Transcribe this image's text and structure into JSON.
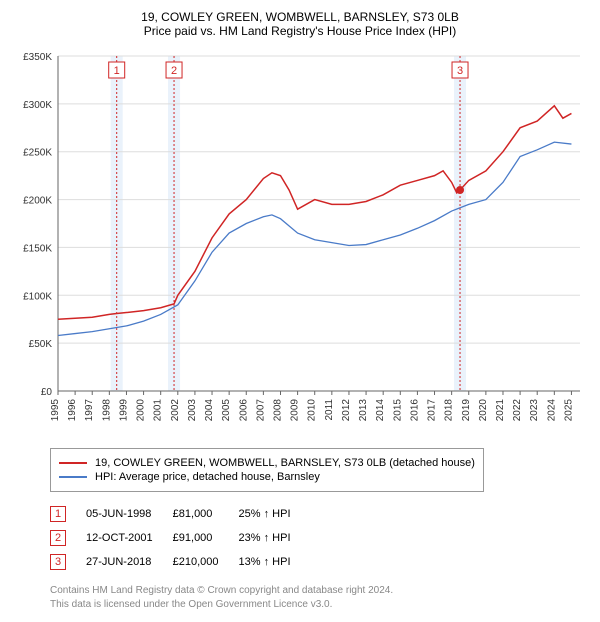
{
  "title": "19, COWLEY GREEN, WOMBWELL, BARNSLEY, S73 0LB",
  "subtitle": "Price paid vs. HM Land Registry's House Price Index (HPI)",
  "chart": {
    "type": "line",
    "background_color": "#ffffff",
    "grid_color": "#dddddd",
    "axis_color": "#666666",
    "title_fontsize": 12,
    "label_fontsize": 10,
    "xlim": [
      1995,
      2025.5
    ],
    "ylim": [
      0,
      350000
    ],
    "ytick_step": 50000,
    "ytick_labels": [
      "£0",
      "£50K",
      "£100K",
      "£150K",
      "£200K",
      "£250K",
      "£300K",
      "£350K"
    ],
    "xticks": [
      1995,
      1996,
      1997,
      1998,
      1999,
      2000,
      2001,
      2002,
      2003,
      2004,
      2005,
      2006,
      2007,
      2008,
      2009,
      2010,
      2011,
      2012,
      2013,
      2014,
      2015,
      2016,
      2017,
      2018,
      2019,
      2020,
      2021,
      2022,
      2023,
      2024,
      2025
    ],
    "marker_bands": [
      {
        "year": 1998.43,
        "label": "1"
      },
      {
        "year": 2001.78,
        "label": "2"
      },
      {
        "year": 2018.49,
        "label": "3"
      }
    ],
    "band_color": "#eaf2fb",
    "marker_dash_color": "#d02525",
    "marker_box_border": "#d02525",
    "marker_box_fill": "#ffffff",
    "series": [
      {
        "name": "property",
        "color": "#d02525",
        "line_width": 1.5,
        "data": [
          [
            1995,
            75000
          ],
          [
            1996,
            76000
          ],
          [
            1997,
            77000
          ],
          [
            1998,
            80000
          ],
          [
            1998.43,
            81000
          ],
          [
            1999,
            82000
          ],
          [
            2000,
            84000
          ],
          [
            2001,
            87000
          ],
          [
            2001.78,
            91000
          ],
          [
            2002,
            100000
          ],
          [
            2003,
            125000
          ],
          [
            2004,
            160000
          ],
          [
            2005,
            185000
          ],
          [
            2006,
            200000
          ],
          [
            2007,
            222000
          ],
          [
            2007.5,
            228000
          ],
          [
            2008,
            225000
          ],
          [
            2008.5,
            210000
          ],
          [
            2009,
            190000
          ],
          [
            2010,
            200000
          ],
          [
            2011,
            195000
          ],
          [
            2012,
            195000
          ],
          [
            2013,
            198000
          ],
          [
            2014,
            205000
          ],
          [
            2015,
            215000
          ],
          [
            2016,
            220000
          ],
          [
            2017,
            225000
          ],
          [
            2017.5,
            230000
          ],
          [
            2018,
            218000
          ],
          [
            2018.3,
            207000
          ],
          [
            2018.49,
            210000
          ],
          [
            2019,
            220000
          ],
          [
            2020,
            230000
          ],
          [
            2021,
            250000
          ],
          [
            2022,
            275000
          ],
          [
            2023,
            282000
          ],
          [
            2024,
            298000
          ],
          [
            2024.5,
            285000
          ],
          [
            2025,
            290000
          ]
        ]
      },
      {
        "name": "hpi",
        "color": "#4a7bc8",
        "line_width": 1.3,
        "data": [
          [
            1995,
            58000
          ],
          [
            1996,
            60000
          ],
          [
            1997,
            62000
          ],
          [
            1998,
            65000
          ],
          [
            1999,
            68000
          ],
          [
            2000,
            73000
          ],
          [
            2001,
            80000
          ],
          [
            2002,
            90000
          ],
          [
            2003,
            115000
          ],
          [
            2004,
            145000
          ],
          [
            2005,
            165000
          ],
          [
            2006,
            175000
          ],
          [
            2007,
            182000
          ],
          [
            2007.5,
            184000
          ],
          [
            2008,
            180000
          ],
          [
            2009,
            165000
          ],
          [
            2010,
            158000
          ],
          [
            2011,
            155000
          ],
          [
            2012,
            152000
          ],
          [
            2013,
            153000
          ],
          [
            2014,
            158000
          ],
          [
            2015,
            163000
          ],
          [
            2016,
            170000
          ],
          [
            2017,
            178000
          ],
          [
            2018,
            188000
          ],
          [
            2019,
            195000
          ],
          [
            2020,
            200000
          ],
          [
            2021,
            218000
          ],
          [
            2022,
            245000
          ],
          [
            2023,
            252000
          ],
          [
            2024,
            260000
          ],
          [
            2025,
            258000
          ]
        ]
      }
    ],
    "scatter_point": {
      "x": 2018.49,
      "y": 210000,
      "color": "#d02525",
      "size": 4
    }
  },
  "legend": {
    "items": [
      {
        "label": "19, COWLEY GREEN, WOMBWELL, BARNSLEY, S73 0LB (detached house)",
        "color": "#d02525"
      },
      {
        "label": "HPI: Average price, detached house, Barnsley",
        "color": "#4a7bc8"
      }
    ]
  },
  "markers_table": {
    "rows": [
      {
        "num": "1",
        "date": "05-JUN-1998",
        "price": "£81,000",
        "delta": "25% ↑ HPI"
      },
      {
        "num": "2",
        "date": "12-OCT-2001",
        "price": "£91,000",
        "delta": "23% ↑ HPI"
      },
      {
        "num": "3",
        "date": "27-JUN-2018",
        "price": "£210,000",
        "delta": "13% ↑ HPI"
      }
    ],
    "num_border_color": "#d02525"
  },
  "footer": {
    "line1": "Contains HM Land Registry data © Crown copyright and database right 2024.",
    "line2": "This data is licensed under the Open Government Licence v3.0."
  }
}
